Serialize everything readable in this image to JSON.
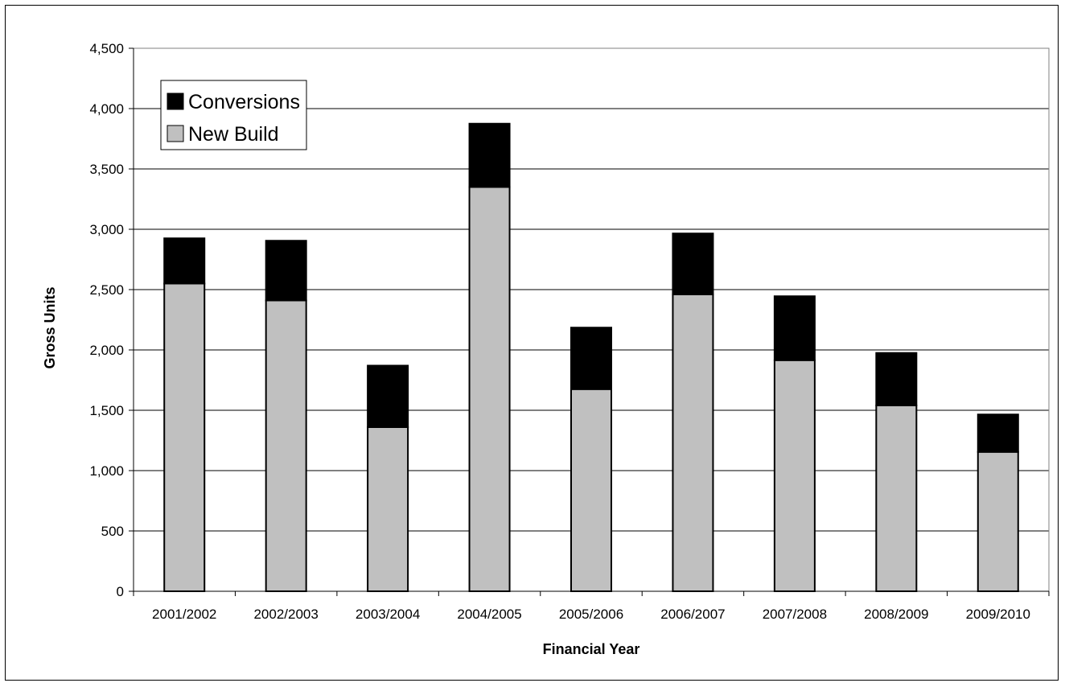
{
  "chart_data": {
    "type": "bar",
    "stacked": true,
    "categories": [
      "2001/2002",
      "2002/2003",
      "2003/2004",
      "2004/2005",
      "2005/2006",
      "2006/2007",
      "2007/2008",
      "2008/2009",
      "2009/2010"
    ],
    "series": [
      {
        "name": "New Build",
        "values": [
          2550,
          2410,
          1360,
          3350,
          1675,
          2460,
          1915,
          1540,
          1155
        ],
        "color": "#c0c0c0"
      },
      {
        "name": "Conversions",
        "values": [
          375,
          495,
          510,
          525,
          510,
          505,
          530,
          435,
          310
        ],
        "color": "#000000"
      }
    ],
    "xlabel": "Financial Year",
    "ylabel": "Gross Units",
    "ylim": [
      0,
      4500
    ],
    "yticks": [
      0,
      500,
      1000,
      1500,
      2000,
      2500,
      3000,
      3500,
      4000,
      4500
    ],
    "ytick_labels": [
      "0",
      "500",
      "1,000",
      "1,500",
      "2,000",
      "2,500",
      "3,000",
      "3,500",
      "4,000",
      "4,500"
    ],
    "grid": true,
    "legend": {
      "placement": "top-left",
      "entries": [
        "Conversions",
        "New Build"
      ]
    }
  }
}
